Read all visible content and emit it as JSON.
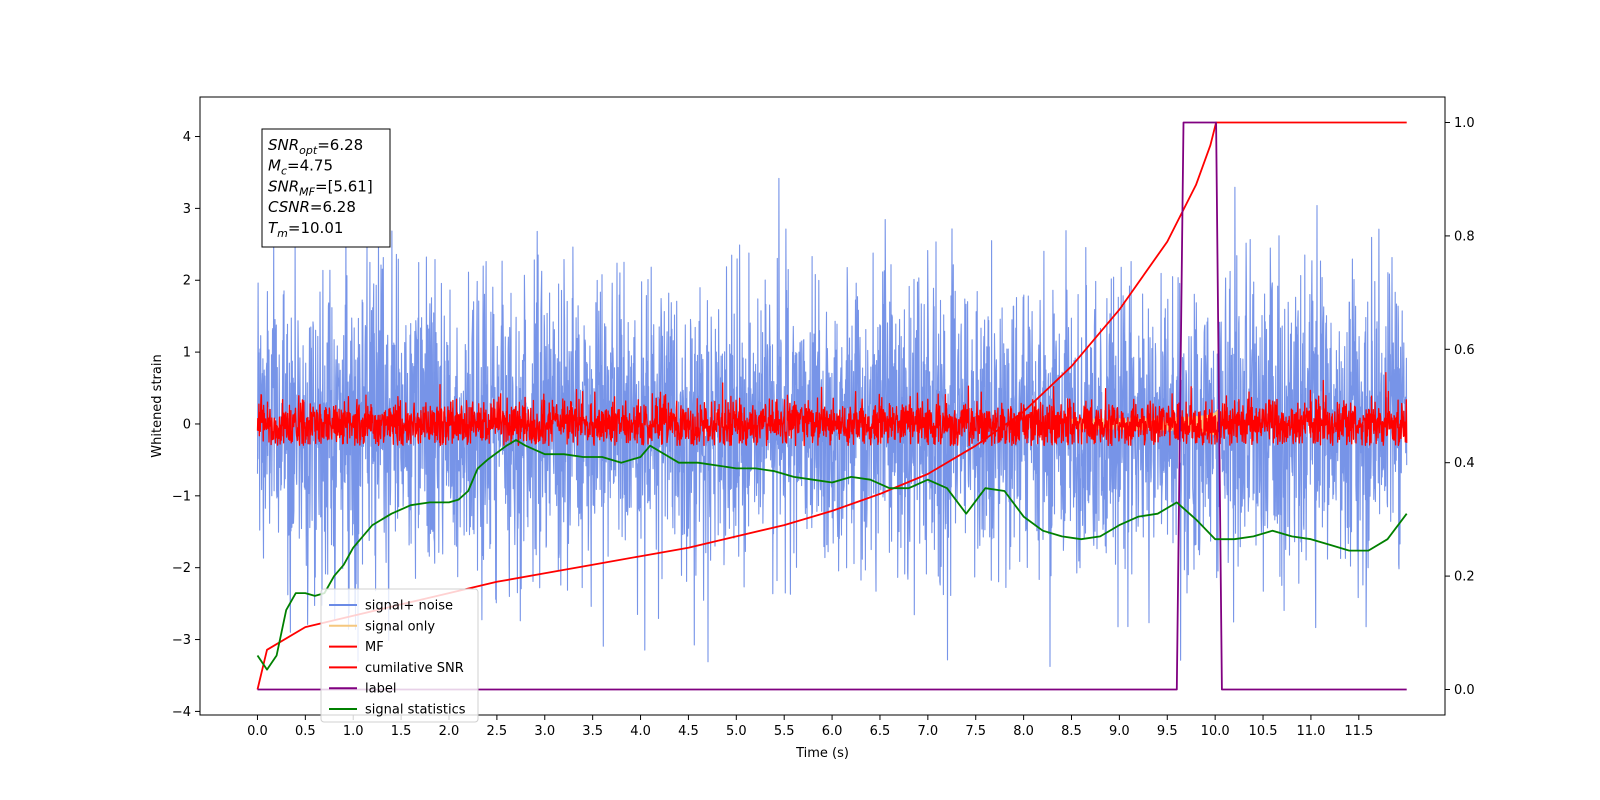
{
  "chart_data": {
    "type": "line",
    "xlabel": "Time (s)",
    "ylabel_left": "Whitened strain",
    "ylabel_right": "",
    "xlim": [
      -0.6,
      12.4
    ],
    "ylim_left": [
      -4.05,
      4.55
    ],
    "ylim_right": [
      -0.045,
      1.045
    ],
    "x_ticks": [
      "0.0",
      "0.5",
      "1.0",
      "1.5",
      "2.0",
      "2.5",
      "3.0",
      "3.5",
      "4.0",
      "4.5",
      "5.0",
      "5.5",
      "6.0",
      "6.5",
      "7.0",
      "7.5",
      "8.0",
      "8.5",
      "9.0",
      "9.5",
      "10.0",
      "10.5",
      "11.0",
      "11.5"
    ],
    "y_ticks_left": [
      "−4",
      "−3",
      "−2",
      "−1",
      "0",
      "1",
      "2",
      "3",
      "4"
    ],
    "y_ticks_right": [
      "0.0",
      "0.2",
      "0.4",
      "0.6",
      "0.8",
      "1.0"
    ],
    "grid": false,
    "legend_position": "lower-left",
    "annotation": {
      "lines": [
        {
          "var": "SNR",
          "sub": "opt",
          "rest": "=6.28"
        },
        {
          "var": "M",
          "sub": "c",
          "rest": "=4.75"
        },
        {
          "var": "SNR",
          "sub": "MF",
          "rest": "=[5.61]"
        },
        {
          "var": "CSNR",
          "sub": "",
          "rest": "=6.28"
        },
        {
          "var": "T",
          "sub": "m",
          "rest": "=10.01"
        }
      ]
    },
    "series": [
      {
        "name": "signal+ noise",
        "axis": "left",
        "color": "#6b8be6",
        "style": "noise",
        "x_range": [
          0.0,
          12.0
        ],
        "center": 0.0,
        "std": 1.05,
        "extent": [
          -3.45,
          4.15
        ]
      },
      {
        "name": "signal only",
        "axis": "left",
        "color": "#f5c77e",
        "style": "chirp",
        "x_range": [
          8.5,
          10.05
        ],
        "amplitude_max": 0.7
      },
      {
        "name": "MF",
        "axis": "left",
        "color": "#ff0000",
        "style": "noise",
        "x_range": [
          0.0,
          12.0
        ],
        "center": 0.0,
        "std": 0.17,
        "extent": [
          -0.3,
          0.75
        ]
      },
      {
        "name": "cumilative SNR",
        "axis": "right",
        "color": "#ff0000",
        "style": "line",
        "points": [
          [
            0.0,
            0.0
          ],
          [
            0.1,
            0.07
          ],
          [
            0.5,
            0.11
          ],
          [
            1.0,
            0.13
          ],
          [
            1.5,
            0.15
          ],
          [
            2.0,
            0.17
          ],
          [
            2.5,
            0.19
          ],
          [
            3.0,
            0.205
          ],
          [
            3.5,
            0.22
          ],
          [
            4.0,
            0.235
          ],
          [
            4.5,
            0.25
          ],
          [
            5.0,
            0.27
          ],
          [
            5.5,
            0.29
          ],
          [
            6.0,
            0.315
          ],
          [
            6.5,
            0.345
          ],
          [
            7.0,
            0.38
          ],
          [
            7.5,
            0.43
          ],
          [
            8.0,
            0.49
          ],
          [
            8.5,
            0.57
          ],
          [
            9.0,
            0.67
          ],
          [
            9.5,
            0.79
          ],
          [
            9.8,
            0.89
          ],
          [
            9.95,
            0.96
          ],
          [
            10.01,
            1.0
          ],
          [
            12.0,
            1.0
          ]
        ]
      },
      {
        "name": "label",
        "axis": "right",
        "color": "#800080",
        "style": "line",
        "points": [
          [
            0.0,
            0.0
          ],
          [
            9.6,
            0.0
          ],
          [
            9.67,
            1.0
          ],
          [
            10.01,
            1.0
          ],
          [
            10.07,
            0.0
          ],
          [
            12.0,
            0.0
          ]
        ]
      },
      {
        "name": "signal statistics",
        "axis": "right",
        "color": "#008000",
        "style": "line",
        "points": [
          [
            0.0,
            0.06
          ],
          [
            0.1,
            0.035
          ],
          [
            0.2,
            0.06
          ],
          [
            0.3,
            0.14
          ],
          [
            0.4,
            0.17
          ],
          [
            0.5,
            0.17
          ],
          [
            0.6,
            0.165
          ],
          [
            0.7,
            0.17
          ],
          [
            0.8,
            0.2
          ],
          [
            0.9,
            0.22
          ],
          [
            1.0,
            0.25
          ],
          [
            1.2,
            0.29
          ],
          [
            1.4,
            0.31
          ],
          [
            1.6,
            0.325
          ],
          [
            1.8,
            0.33
          ],
          [
            2.0,
            0.33
          ],
          [
            2.1,
            0.335
          ],
          [
            2.2,
            0.35
          ],
          [
            2.3,
            0.39
          ],
          [
            2.4,
            0.405
          ],
          [
            2.6,
            0.43
          ],
          [
            2.7,
            0.44
          ],
          [
            2.8,
            0.43
          ],
          [
            3.0,
            0.415
          ],
          [
            3.2,
            0.415
          ],
          [
            3.4,
            0.41
          ],
          [
            3.6,
            0.41
          ],
          [
            3.8,
            0.4
          ],
          [
            4.0,
            0.41
          ],
          [
            4.1,
            0.43
          ],
          [
            4.2,
            0.42
          ],
          [
            4.4,
            0.4
          ],
          [
            4.6,
            0.4
          ],
          [
            4.8,
            0.395
          ],
          [
            5.0,
            0.39
          ],
          [
            5.2,
            0.39
          ],
          [
            5.4,
            0.385
          ],
          [
            5.6,
            0.375
          ],
          [
            5.8,
            0.37
          ],
          [
            6.0,
            0.365
          ],
          [
            6.2,
            0.375
          ],
          [
            6.4,
            0.37
          ],
          [
            6.6,
            0.355
          ],
          [
            6.8,
            0.355
          ],
          [
            7.0,
            0.37
          ],
          [
            7.2,
            0.355
          ],
          [
            7.4,
            0.31
          ],
          [
            7.6,
            0.355
          ],
          [
            7.8,
            0.35
          ],
          [
            8.0,
            0.305
          ],
          [
            8.2,
            0.28
          ],
          [
            8.4,
            0.27
          ],
          [
            8.6,
            0.265
          ],
          [
            8.8,
            0.27
          ],
          [
            9.0,
            0.29
          ],
          [
            9.2,
            0.305
          ],
          [
            9.4,
            0.31
          ],
          [
            9.6,
            0.33
          ],
          [
            9.8,
            0.3
          ],
          [
            10.0,
            0.265
          ],
          [
            10.2,
            0.265
          ],
          [
            10.4,
            0.27
          ],
          [
            10.6,
            0.28
          ],
          [
            10.8,
            0.27
          ],
          [
            11.0,
            0.265
          ],
          [
            11.2,
            0.255
          ],
          [
            11.4,
            0.245
          ],
          [
            11.6,
            0.245
          ],
          [
            11.8,
            0.265
          ],
          [
            12.0,
            0.31
          ]
        ]
      }
    ]
  }
}
